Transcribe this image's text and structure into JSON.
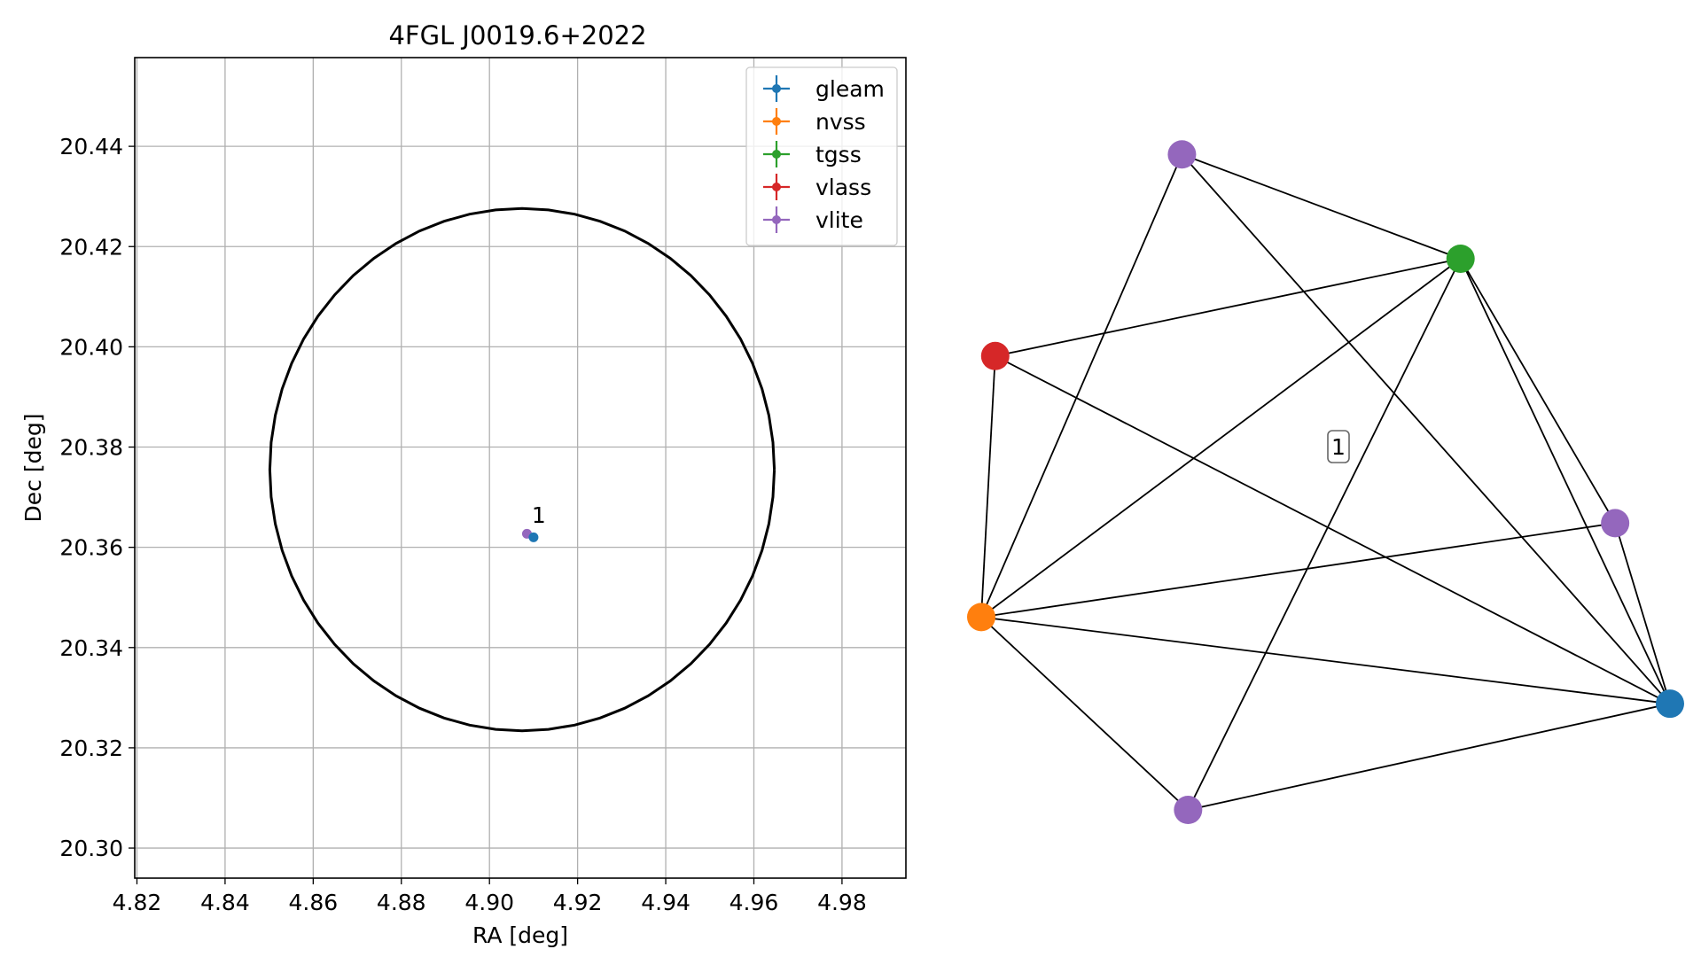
{
  "chart_data": [
    {
      "type": "scatter",
      "title": "4FGL J0019.6+2022",
      "xlabel": "RA [deg]",
      "ylabel": "Dec [deg]",
      "xlim": [
        4.8195,
        4.9945
      ],
      "ylim": [
        20.294,
        20.4577
      ],
      "xticks": [
        4.82,
        4.84,
        4.86,
        4.88,
        4.9,
        4.92,
        4.94,
        4.96,
        4.98
      ],
      "xtick_labels": [
        "4.82",
        "4.84",
        "4.86",
        "4.88",
        "4.90",
        "4.92",
        "4.94",
        "4.96",
        "4.98"
      ],
      "yticks": [
        20.3,
        20.32,
        20.34,
        20.36,
        20.38,
        20.4,
        20.42,
        20.44
      ],
      "ytick_labels": [
        "20.30",
        "20.32",
        "20.34",
        "20.36",
        "20.38",
        "20.40",
        "20.42",
        "20.44"
      ],
      "grid": true,
      "legend_position": "top-right",
      "legend": [
        {
          "name": "gleam",
          "color": "#1f77b4"
        },
        {
          "name": "nvss",
          "color": "#ff7f0e"
        },
        {
          "name": "tgss",
          "color": "#2ca02c"
        },
        {
          "name": "vlass",
          "color": "#d62728"
        },
        {
          "name": "vlite",
          "color": "#9467bd"
        }
      ],
      "ellipse": {
        "center": [
          4.9074,
          20.3755
        ],
        "width": 0.1145,
        "height": 0.1042,
        "color": "#000000"
      },
      "points": [
        {
          "series": "vlite",
          "x": 4.9085,
          "y": 20.3627,
          "color": "#9467bd"
        },
        {
          "series": "gleam",
          "x": 4.91,
          "y": 20.362,
          "color": "#1f77b4"
        }
      ],
      "annotations": [
        {
          "text": "1",
          "x": 4.911,
          "y": 20.3665
        }
      ]
    },
    {
      "type": "network",
      "nodes": [
        {
          "id": "vlite_top",
          "color": "#9467bd",
          "x": 0.2914,
          "y": 0.9582
        },
        {
          "id": "tgss",
          "color": "#2ca02c",
          "x": 0.6959,
          "y": 0.8057
        },
        {
          "id": "vlass",
          "color": "#d62728",
          "x": 0.0203,
          "y": 0.6635
        },
        {
          "id": "vlite_right",
          "color": "#9467bd",
          "x": 0.9204,
          "y": 0.4192
        },
        {
          "id": "nvss",
          "color": "#ff7f0e",
          "x": 0.0,
          "y": 0.2819
        },
        {
          "id": "gleam",
          "color": "#1f77b4",
          "x": 1.0,
          "y": 0.1552
        },
        {
          "id": "vlite_bottom",
          "color": "#9467bd",
          "x": 0.3003,
          "y": 0.0
        }
      ],
      "edges": [
        [
          "vlite_top",
          "tgss"
        ],
        [
          "vlite_top",
          "nvss"
        ],
        [
          "vlite_top",
          "gleam"
        ],
        [
          "tgss",
          "vlass"
        ],
        [
          "tgss",
          "nvss"
        ],
        [
          "tgss",
          "vlite_bottom"
        ],
        [
          "tgss",
          "vlite_right"
        ],
        [
          "tgss",
          "gleam"
        ],
        [
          "vlass",
          "nvss"
        ],
        [
          "vlass",
          "gleam"
        ],
        [
          "vlite_right",
          "nvss"
        ],
        [
          "vlite_right",
          "gleam"
        ],
        [
          "nvss",
          "gleam"
        ],
        [
          "nvss",
          "vlite_bottom"
        ],
        [
          "gleam",
          "vlite_bottom"
        ]
      ],
      "label": "1"
    }
  ]
}
